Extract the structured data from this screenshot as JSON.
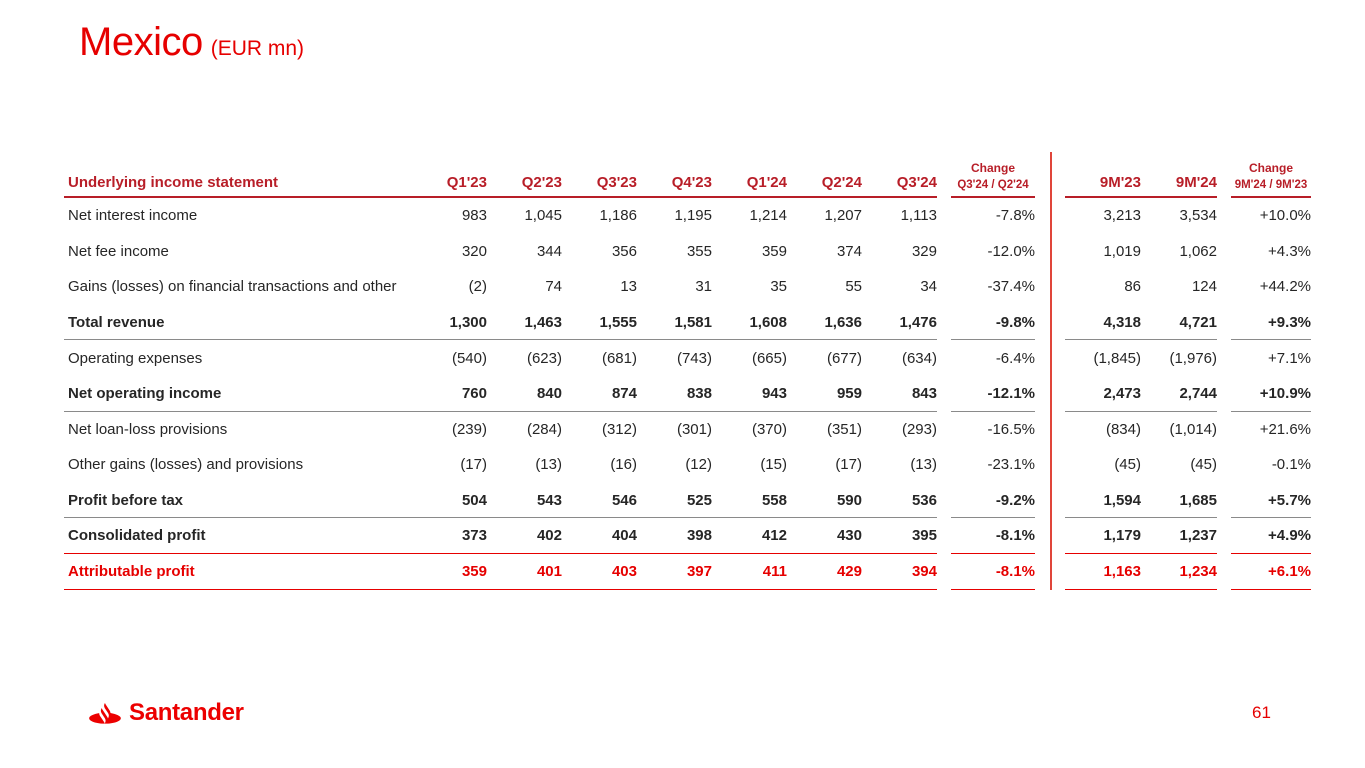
{
  "slide": {
    "title": "Mexico",
    "subtitle": "(EUR mn)",
    "page_number": "61",
    "brand": "Santander",
    "brand_icon": "santander-flame-icon"
  },
  "colors": {
    "brand_red": "#EC0000",
    "title_red": "#E60000",
    "header_red": "#B81E28",
    "body_text": "#262626",
    "separator_gray": "#8A8A8A"
  },
  "table": {
    "label_header": "Underlying income statement",
    "quarter_headers": [
      "Q1'23",
      "Q2'23",
      "Q3'23",
      "Q4'23",
      "Q1'24",
      "Q2'24",
      "Q3'24"
    ],
    "change_q": {
      "line1": "Change",
      "line2": "Q3'24 / Q2'24"
    },
    "period_headers": [
      "9M'23",
      "9M'24"
    ],
    "change_9m": {
      "line1": "Change",
      "line2": "9M'24 / 9M'23"
    },
    "rows": [
      {
        "label": "Net interest income",
        "style": "normal",
        "separator": "none",
        "quarters": [
          "983",
          "1,045",
          "1,186",
          "1,195",
          "1,214",
          "1,207",
          "1,113"
        ],
        "change_q": "-7.8%",
        "periods": [
          "3,213",
          "3,534"
        ],
        "change_9m": "+10.0%"
      },
      {
        "label": "Net fee income",
        "style": "normal",
        "separator": "none",
        "quarters": [
          "320",
          "344",
          "356",
          "355",
          "359",
          "374",
          "329"
        ],
        "change_q": "-12.0%",
        "periods": [
          "1,019",
          "1,062"
        ],
        "change_9m": "+4.3%"
      },
      {
        "label": "Gains (losses) on financial transactions and other",
        "style": "normal",
        "separator": "none",
        "quarters": [
          "(2)",
          "74",
          "13",
          "31",
          "35",
          "55",
          "34"
        ],
        "change_q": "-37.4%",
        "periods": [
          "86",
          "124"
        ],
        "change_9m": "+44.2%"
      },
      {
        "label": "Total revenue",
        "style": "bold",
        "separator": "gray",
        "quarters": [
          "1,300",
          "1,463",
          "1,555",
          "1,581",
          "1,608",
          "1,636",
          "1,476"
        ],
        "change_q": "-9.8%",
        "periods": [
          "4,318",
          "4,721"
        ],
        "change_9m": "+9.3%"
      },
      {
        "label": "Operating expenses",
        "style": "normal",
        "separator": "none",
        "quarters": [
          "(540)",
          "(623)",
          "(681)",
          "(743)",
          "(665)",
          "(677)",
          "(634)"
        ],
        "change_q": "-6.4%",
        "periods": [
          "(1,845)",
          "(1,976)"
        ],
        "change_9m": "+7.1%"
      },
      {
        "label": "Net operating income",
        "style": "bold",
        "separator": "gray",
        "quarters": [
          "760",
          "840",
          "874",
          "838",
          "943",
          "959",
          "843"
        ],
        "change_q": "-12.1%",
        "periods": [
          "2,473",
          "2,744"
        ],
        "change_9m": "+10.9%"
      },
      {
        "label": "Net loan-loss provisions",
        "style": "normal",
        "separator": "none",
        "quarters": [
          "(239)",
          "(284)",
          "(312)",
          "(301)",
          "(370)",
          "(351)",
          "(293)"
        ],
        "change_q": "-16.5%",
        "periods": [
          "(834)",
          "(1,014)"
        ],
        "change_9m": "+21.6%"
      },
      {
        "label": "Other gains (losses) and provisions",
        "style": "normal",
        "separator": "none",
        "quarters": [
          "(17)",
          "(13)",
          "(16)",
          "(12)",
          "(15)",
          "(17)",
          "(13)"
        ],
        "change_q": "-23.1%",
        "periods": [
          "(45)",
          "(45)"
        ],
        "change_9m": "-0.1%"
      },
      {
        "label": "Profit before tax",
        "style": "bold",
        "separator": "gray",
        "quarters": [
          "504",
          "543",
          "546",
          "525",
          "558",
          "590",
          "536"
        ],
        "change_q": "-9.2%",
        "periods": [
          "1,594",
          "1,685"
        ],
        "change_9m": "+5.7%"
      },
      {
        "label": "Consolidated profit",
        "style": "bold",
        "separator": "red",
        "quarters": [
          "373",
          "402",
          "404",
          "398",
          "412",
          "430",
          "395"
        ],
        "change_q": "-8.1%",
        "periods": [
          "1,179",
          "1,237"
        ],
        "change_9m": "+4.9%"
      },
      {
        "label": "Attributable profit",
        "style": "bold-red",
        "separator": "red",
        "quarters": [
          "359",
          "401",
          "403",
          "397",
          "411",
          "429",
          "394"
        ],
        "change_q": "-8.1%",
        "periods": [
          "1,163",
          "1,234"
        ],
        "change_9m": "+6.1%"
      }
    ]
  }
}
